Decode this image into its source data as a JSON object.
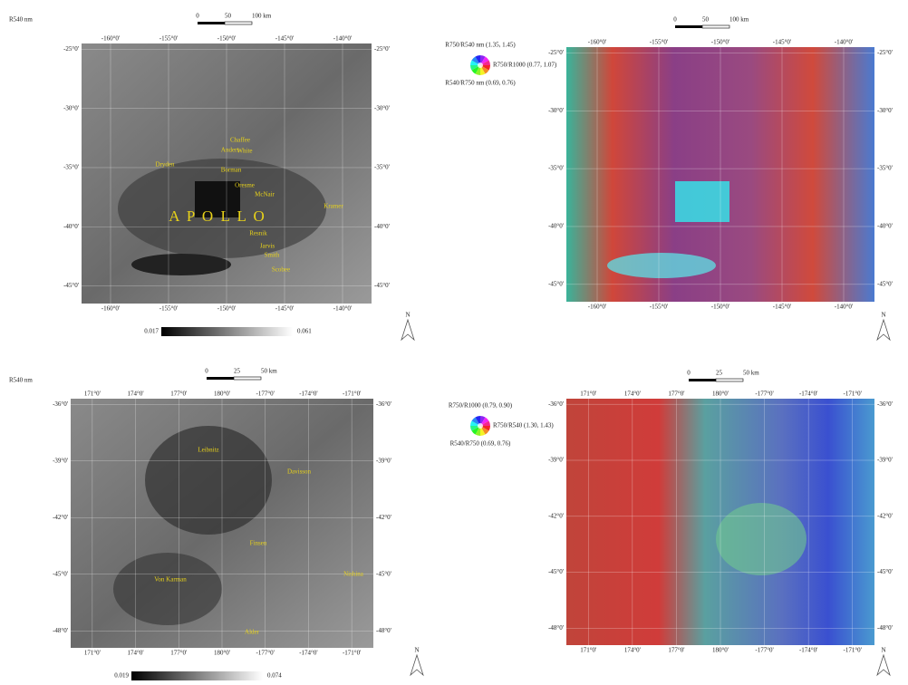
{
  "panels": [
    {
      "label": "R540 nm",
      "scale": [
        "0",
        "50",
        "100 km"
      ],
      "lon_ticks": [
        "-160°0'",
        "-155°0'",
        "-150°0'",
        "-145°0'",
        "-140°0'"
      ],
      "lat_ticks": [
        "-25°0'",
        "-30°0'",
        "-35°0'",
        "-40°0'",
        "-45°0'"
      ],
      "features": [
        "A P O L L O",
        "Dryden",
        "Chaffee",
        "Anders",
        "White",
        "Borman",
        "Oresme",
        "McNair",
        "Resnik",
        "Jarvis",
        "Smith",
        "Scobee",
        "Kramer"
      ],
      "colorbar": [
        "0.017",
        "0.061"
      ],
      "north_label": "N"
    },
    {
      "wheel": [
        "R750/R540 nm (1.35, 1.45)",
        "R750/R1000 (0.77, 1.07)",
        "R540/R750 nm (0.69, 0.76)"
      ],
      "scale": [
        "0",
        "50",
        "100 km"
      ],
      "lon_ticks": [
        "-160°0'",
        "-155°0'",
        "-150°0'",
        "-145°0'",
        "-140°0'"
      ],
      "lat_ticks": [
        "-25°0'",
        "-30°0'",
        "-35°0'",
        "-40°0'",
        "-45°0'"
      ],
      "north_label": "N"
    },
    {
      "label": "R540 nm",
      "scale": [
        "0",
        "25",
        "50 km"
      ],
      "lon_ticks": [
        "171°0'",
        "174°0'",
        "177°0'",
        "180°0'",
        "-177°0'",
        "-174°0'",
        "-171°0'"
      ],
      "lat_ticks": [
        "-36°0'",
        "-39°0'",
        "-42°0'",
        "-45°0'",
        "-48°0'"
      ],
      "features": [
        "Leibnitz",
        "Davisson",
        "Finsen",
        "Von Karman",
        "Nishina",
        "Alder"
      ],
      "colorbar": [
        "0.019",
        "0.074"
      ],
      "north_label": "N"
    },
    {
      "wheel": [
        "R750/R1000 (0.79, 0.90)",
        "R750/R540 (1.30, 1.43)",
        "R540/R750 (0.69, 0.76)"
      ],
      "scale": [
        "0",
        "25",
        "50 km"
      ],
      "lon_ticks": [
        "171°0'",
        "174°0'",
        "177°0'",
        "180°0'",
        "-177°0'",
        "-174°0'",
        "-171°0'"
      ],
      "lat_ticks": [
        "-36°0'",
        "-39°0'",
        "-42°0'",
        "-45°0'",
        "-48°0'"
      ],
      "north_label": "N"
    }
  ]
}
